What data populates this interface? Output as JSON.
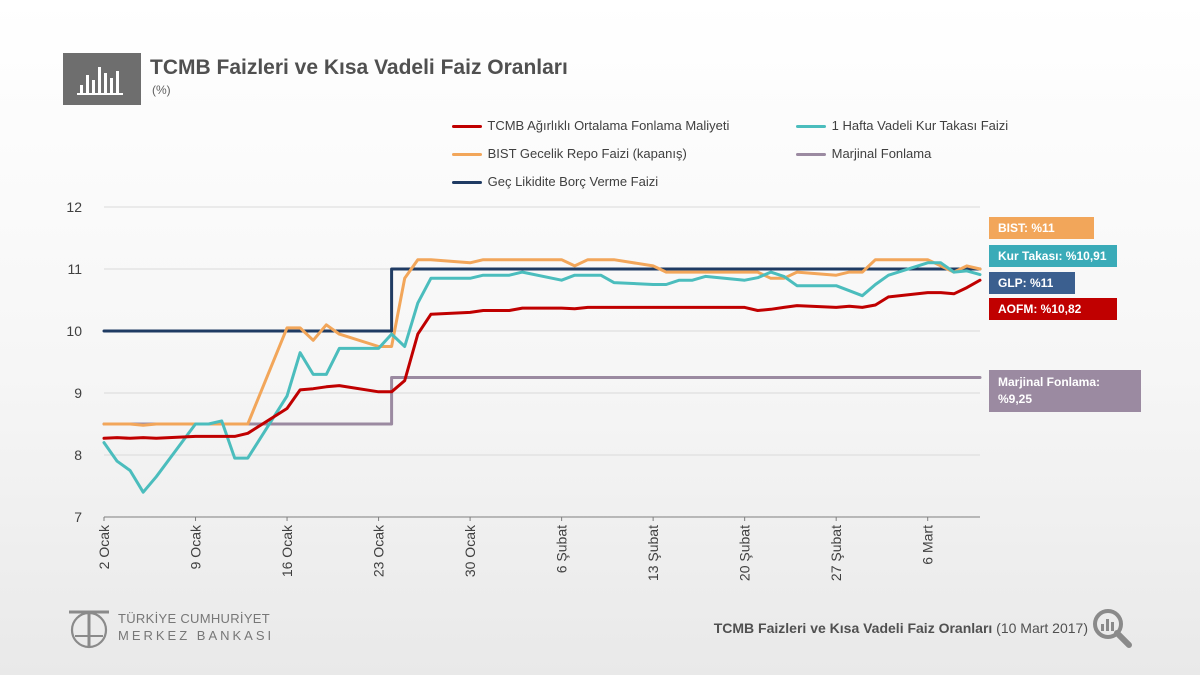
{
  "header": {
    "title": "TCMB Faizleri ve Kısa Vadeli Faiz Oranları",
    "subtitle": "(%)",
    "icon": "bar-chart-icon"
  },
  "colors": {
    "aofm": "#c00000",
    "kur_takasi": "#4bbdbd",
    "bist": "#f2a65a",
    "marjinal": "#9b8aa1",
    "glp": "#1f3b63",
    "kur_takasi_box": "#3aabb8",
    "glp_box": "#3b5f8f"
  },
  "callouts": {
    "bist": "BIST: %11",
    "kur_takasi": "Kur Takası: %10,91",
    "glp": "GLP: %11",
    "aofm": "AOFM: %10,82",
    "marjinal_line1": "Marjinal Fonlama:",
    "marjinal_line2": "%9,25"
  },
  "footer": {
    "logo_line1": "TÜRKİYE CUMHURİYET",
    "logo_line2": "MERKEZ BANKASI",
    "caption_bold": "TCMB Faizleri ve Kısa Vadeli Faiz Oranları",
    "caption_date": " (10 Mart 2017)",
    "search_icon": "magnifier-chart-icon"
  },
  "chart_data": {
    "type": "line",
    "title": "TCMB Faizleri ve Kısa Vadeli Faiz Oranları",
    "ylabel": "(%)",
    "ylim": [
      7,
      12
    ],
    "yticks": [
      7,
      8,
      9,
      10,
      11,
      12
    ],
    "grid": true,
    "legend_position": "top-right",
    "x_range": [
      "2017-01-02",
      "2017-03-10"
    ],
    "xtick_labels": [
      "2 Ocak",
      "9 Ocak",
      "16 Ocak",
      "23 Ocak",
      "30 Ocak",
      "6 Şubat",
      "13 Şubat",
      "20 Şubat",
      "27 Şubat",
      "6 Mart"
    ],
    "xtick_dates": [
      "2017-01-02",
      "2017-01-09",
      "2017-01-16",
      "2017-01-23",
      "2017-01-30",
      "2017-02-06",
      "2017-02-13",
      "2017-02-20",
      "2017-02-27",
      "2017-03-06"
    ],
    "series": [
      {
        "key": "glp",
        "name": "Geç Likidite Borç Verme Faizi",
        "color": "#1f3b63",
        "step": true,
        "points": [
          [
            "2017-01-02",
            10.0
          ],
          [
            "2017-01-24",
            10.0
          ],
          [
            "2017-01-24",
            11.0
          ],
          [
            "2017-03-10",
            11.0
          ]
        ]
      },
      {
        "key": "marjinal",
        "name": "Marjinal Fonlama",
        "color": "#9b8aa1",
        "step": true,
        "points": [
          [
            "2017-01-02",
            8.5
          ],
          [
            "2017-01-24",
            8.5
          ],
          [
            "2017-01-24",
            9.25
          ],
          [
            "2017-03-10",
            9.25
          ]
        ]
      },
      {
        "key": "bist",
        "name": "BIST Gecelik Repo Faizi (kapanış)",
        "color": "#f2a65a",
        "points": [
          [
            "2017-01-02",
            8.5
          ],
          [
            "2017-01-03",
            8.5
          ],
          [
            "2017-01-04",
            8.5
          ],
          [
            "2017-01-05",
            8.48
          ],
          [
            "2017-01-06",
            8.5
          ],
          [
            "2017-01-09",
            8.5
          ],
          [
            "2017-01-10",
            8.5
          ],
          [
            "2017-01-11",
            8.5
          ],
          [
            "2017-01-12",
            8.5
          ],
          [
            "2017-01-13",
            8.5
          ],
          [
            "2017-01-16",
            10.05
          ],
          [
            "2017-01-17",
            10.05
          ],
          [
            "2017-01-18",
            9.85
          ],
          [
            "2017-01-19",
            10.1
          ],
          [
            "2017-01-20",
            9.95
          ],
          [
            "2017-01-23",
            9.75
          ],
          [
            "2017-01-24",
            9.75
          ],
          [
            "2017-01-25",
            10.85
          ],
          [
            "2017-01-26",
            11.15
          ],
          [
            "2017-01-27",
            11.15
          ],
          [
            "2017-01-30",
            11.1
          ],
          [
            "2017-01-31",
            11.15
          ],
          [
            "2017-02-01",
            11.15
          ],
          [
            "2017-02-02",
            11.15
          ],
          [
            "2017-02-03",
            11.15
          ],
          [
            "2017-02-06",
            11.15
          ],
          [
            "2017-02-07",
            11.05
          ],
          [
            "2017-02-08",
            11.15
          ],
          [
            "2017-02-09",
            11.15
          ],
          [
            "2017-02-10",
            11.15
          ],
          [
            "2017-02-13",
            11.05
          ],
          [
            "2017-02-14",
            10.95
          ],
          [
            "2017-02-15",
            10.95
          ],
          [
            "2017-02-16",
            10.95
          ],
          [
            "2017-02-17",
            10.95
          ],
          [
            "2017-02-20",
            10.95
          ],
          [
            "2017-02-21",
            10.95
          ],
          [
            "2017-02-22",
            10.85
          ],
          [
            "2017-02-23",
            10.85
          ],
          [
            "2017-02-24",
            10.95
          ],
          [
            "2017-02-27",
            10.9
          ],
          [
            "2017-02-28",
            10.95
          ],
          [
            "2017-03-01",
            10.95
          ],
          [
            "2017-03-02",
            11.15
          ],
          [
            "2017-03-03",
            11.15
          ],
          [
            "2017-03-06",
            11.15
          ],
          [
            "2017-03-07",
            11.05
          ],
          [
            "2017-03-08",
            10.95
          ],
          [
            "2017-03-09",
            11.05
          ],
          [
            "2017-03-10",
            11.0
          ]
        ]
      },
      {
        "key": "kur_takasi",
        "name": "1 Hafta Vadeli Kur Takası Faizi",
        "color": "#4bbdbd",
        "points": [
          [
            "2017-01-02",
            8.2
          ],
          [
            "2017-01-03",
            7.9
          ],
          [
            "2017-01-04",
            7.75
          ],
          [
            "2017-01-05",
            7.4
          ],
          [
            "2017-01-06",
            7.65
          ],
          [
            "2017-01-09",
            8.5
          ],
          [
            "2017-01-10",
            8.5
          ],
          [
            "2017-01-11",
            8.55
          ],
          [
            "2017-01-12",
            7.95
          ],
          [
            "2017-01-13",
            7.95
          ],
          [
            "2017-01-16",
            8.95
          ],
          [
            "2017-01-17",
            9.65
          ],
          [
            "2017-01-18",
            9.3
          ],
          [
            "2017-01-19",
            9.3
          ],
          [
            "2017-01-20",
            9.72
          ],
          [
            "2017-01-23",
            9.72
          ],
          [
            "2017-01-24",
            9.95
          ],
          [
            "2017-01-25",
            9.75
          ],
          [
            "2017-01-26",
            10.45
          ],
          [
            "2017-01-27",
            10.85
          ],
          [
            "2017-01-30",
            10.85
          ],
          [
            "2017-01-31",
            10.9
          ],
          [
            "2017-02-01",
            10.9
          ],
          [
            "2017-02-02",
            10.9
          ],
          [
            "2017-02-03",
            10.95
          ],
          [
            "2017-02-06",
            10.82
          ],
          [
            "2017-02-07",
            10.9
          ],
          [
            "2017-02-08",
            10.9
          ],
          [
            "2017-02-09",
            10.9
          ],
          [
            "2017-02-10",
            10.78
          ],
          [
            "2017-02-13",
            10.75
          ],
          [
            "2017-02-14",
            10.75
          ],
          [
            "2017-02-15",
            10.82
          ],
          [
            "2017-02-16",
            10.82
          ],
          [
            "2017-02-17",
            10.88
          ],
          [
            "2017-02-20",
            10.82
          ],
          [
            "2017-02-21",
            10.86
          ],
          [
            "2017-02-22",
            10.95
          ],
          [
            "2017-02-23",
            10.88
          ],
          [
            "2017-02-24",
            10.73
          ],
          [
            "2017-02-27",
            10.73
          ],
          [
            "2017-02-28",
            10.65
          ],
          [
            "2017-03-01",
            10.57
          ],
          [
            "2017-03-02",
            10.75
          ],
          [
            "2017-03-03",
            10.9
          ],
          [
            "2017-03-06",
            11.1
          ],
          [
            "2017-03-07",
            11.1
          ],
          [
            "2017-03-08",
            10.95
          ],
          [
            "2017-03-09",
            10.97
          ],
          [
            "2017-03-10",
            10.91
          ]
        ]
      },
      {
        "key": "aofm",
        "name": "TCMB Ağırlıklı Ortalama Fonlama Maliyeti",
        "color": "#c00000",
        "points": [
          [
            "2017-01-02",
            8.27
          ],
          [
            "2017-01-03",
            8.28
          ],
          [
            "2017-01-04",
            8.27
          ],
          [
            "2017-01-05",
            8.28
          ],
          [
            "2017-01-06",
            8.27
          ],
          [
            "2017-01-09",
            8.3
          ],
          [
            "2017-01-10",
            8.3
          ],
          [
            "2017-01-11",
            8.3
          ],
          [
            "2017-01-12",
            8.3
          ],
          [
            "2017-01-13",
            8.35
          ],
          [
            "2017-01-16",
            8.75
          ],
          [
            "2017-01-17",
            9.05
          ],
          [
            "2017-01-18",
            9.07
          ],
          [
            "2017-01-19",
            9.1
          ],
          [
            "2017-01-20",
            9.12
          ],
          [
            "2017-01-23",
            9.02
          ],
          [
            "2017-01-24",
            9.02
          ],
          [
            "2017-01-25",
            9.2
          ],
          [
            "2017-01-26",
            9.95
          ],
          [
            "2017-01-27",
            10.27
          ],
          [
            "2017-01-30",
            10.3
          ],
          [
            "2017-01-31",
            10.33
          ],
          [
            "2017-02-01",
            10.33
          ],
          [
            "2017-02-02",
            10.33
          ],
          [
            "2017-02-03",
            10.37
          ],
          [
            "2017-02-06",
            10.37
          ],
          [
            "2017-02-07",
            10.36
          ],
          [
            "2017-02-08",
            10.38
          ],
          [
            "2017-02-09",
            10.38
          ],
          [
            "2017-02-10",
            10.38
          ],
          [
            "2017-02-13",
            10.38
          ],
          [
            "2017-02-14",
            10.38
          ],
          [
            "2017-02-15",
            10.38
          ],
          [
            "2017-02-16",
            10.38
          ],
          [
            "2017-02-17",
            10.38
          ],
          [
            "2017-02-20",
            10.38
          ],
          [
            "2017-02-21",
            10.33
          ],
          [
            "2017-02-22",
            10.35
          ],
          [
            "2017-02-23",
            10.38
          ],
          [
            "2017-02-24",
            10.41
          ],
          [
            "2017-02-27",
            10.38
          ],
          [
            "2017-02-28",
            10.4
          ],
          [
            "2017-03-01",
            10.38
          ],
          [
            "2017-03-02",
            10.42
          ],
          [
            "2017-03-03",
            10.55
          ],
          [
            "2017-03-06",
            10.62
          ],
          [
            "2017-03-07",
            10.62
          ],
          [
            "2017-03-08",
            10.6
          ],
          [
            "2017-03-09",
            10.7
          ],
          [
            "2017-03-10",
            10.82
          ]
        ]
      }
    ]
  }
}
